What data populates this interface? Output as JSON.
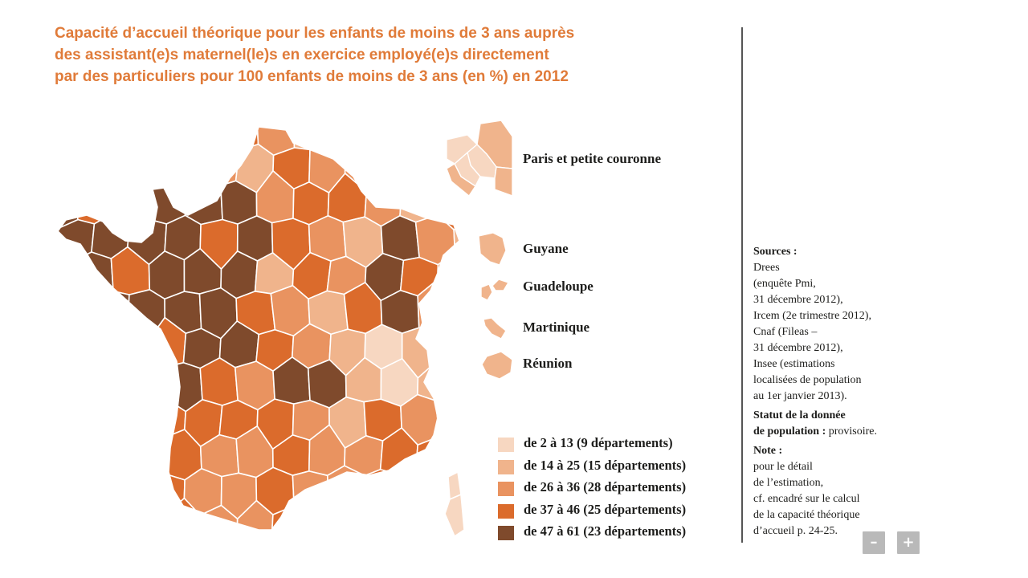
{
  "title": [
    "Capacité d’accueil théorique pour les enfants de moins de 3 ans auprès",
    "des assistant(e)s maternel(le)s en exercice employé(e)s directement",
    "par des particuliers pour 100 enfants de moins de 3 ans (en %) en 2012"
  ],
  "colors": [
    "#f7d7c1",
    "#f0b48c",
    "#e99360",
    "#db6b2c",
    "#7f4a2c"
  ],
  "insets": {
    "paris": "Paris et petite couronne",
    "guyane": "Guyane",
    "guadeloupe": "Guadeloupe",
    "martinique": "Martinique",
    "reunion": "Réunion"
  },
  "legend": [
    {
      "label": "de 2 à 13 (9 départements)",
      "range": [
        2,
        13
      ],
      "count": 9
    },
    {
      "label": "de 14 à 25 (15 départements)",
      "range": [
        14,
        25
      ],
      "count": 15
    },
    {
      "label": "de 26 à 36 (28 départements)",
      "range": [
        26,
        36
      ],
      "count": 28
    },
    {
      "label": "de 37 à 46 (25 départements)",
      "range": [
        37,
        46
      ],
      "count": 25
    },
    {
      "label": "de 47 à 61 (23 départements)",
      "range": [
        47,
        61
      ],
      "count": 23
    }
  ],
  "sources": {
    "heading": "Sources :",
    "lines": [
      "Drees",
      "(enquête Pmi,",
      "31 décembre 2012),",
      "Ircem (2e trimestre 2012),",
      "Cnaf (Fileas –",
      "31 décembre 2012),",
      "Insee (estimations",
      "localisées de population",
      "au 1er janvier 2013)."
    ],
    "statut_heading_1": "Statut de la donnée",
    "statut_heading_2": "de population :",
    "statut_value": "provisoire.",
    "note_heading": "Note :",
    "note_lines": [
      "pour le détail",
      "de l’estimation,",
      "cf. encadré sur le calcul",
      "de la capacité théorique",
      "d’accueil p. 24-25."
    ]
  },
  "zoom": {
    "minus": "–",
    "plus": "+"
  }
}
